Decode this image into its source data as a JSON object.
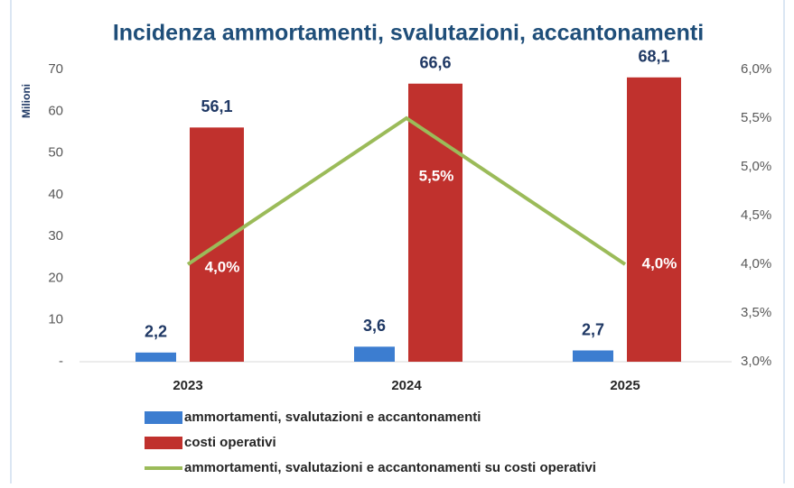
{
  "chart_data": {
    "type": "bar",
    "title": "Incidenza ammortamenti, svalutazioni, accantonamenti",
    "y_label": "Milioni",
    "categories": [
      "2023",
      "2024",
      "2025"
    ],
    "series": [
      {
        "name": "ammortamenti, svalutazioni e accantonamenti",
        "color": "#3c7dd0",
        "values": [
          2.2,
          3.6,
          2.7
        ],
        "value_labels": [
          "2,2",
          "3,6",
          "2,7"
        ]
      },
      {
        "name": "costi operativi",
        "color": "#c0312d",
        "values": [
          56.1,
          66.6,
          68.1
        ],
        "value_labels": [
          "56,1",
          "66,6",
          "68,1"
        ]
      },
      {
        "name": "ammortamenti, svalutazioni e accantonamenti su costi operativi",
        "color": "#9bbb59",
        "type": "line",
        "axis": "y2",
        "values": [
          4.0,
          5.5,
          4.0
        ],
        "value_labels": [
          "4,0%",
          "5,5%",
          "4,0%"
        ]
      }
    ],
    "ylim": [
      0,
      70
    ],
    "yticks": [
      {
        "value": 0,
        "label": "-"
      },
      10,
      20,
      30,
      40,
      50,
      60,
      70
    ],
    "y2lim": [
      3,
      6
    ],
    "y2ticks": [
      {
        "value": 3,
        "label": "3,0%"
      },
      {
        "value": 3.5,
        "label": "3,5%"
      },
      {
        "value": 4,
        "label": "4,0%"
      },
      {
        "value": 4.5,
        "label": "4,5%"
      },
      {
        "value": 5,
        "label": "5,0%"
      },
      {
        "value": 5.5,
        "label": "5,5%"
      },
      {
        "value": 6,
        "label": "6,0%"
      }
    ],
    "legend": "bottom"
  }
}
